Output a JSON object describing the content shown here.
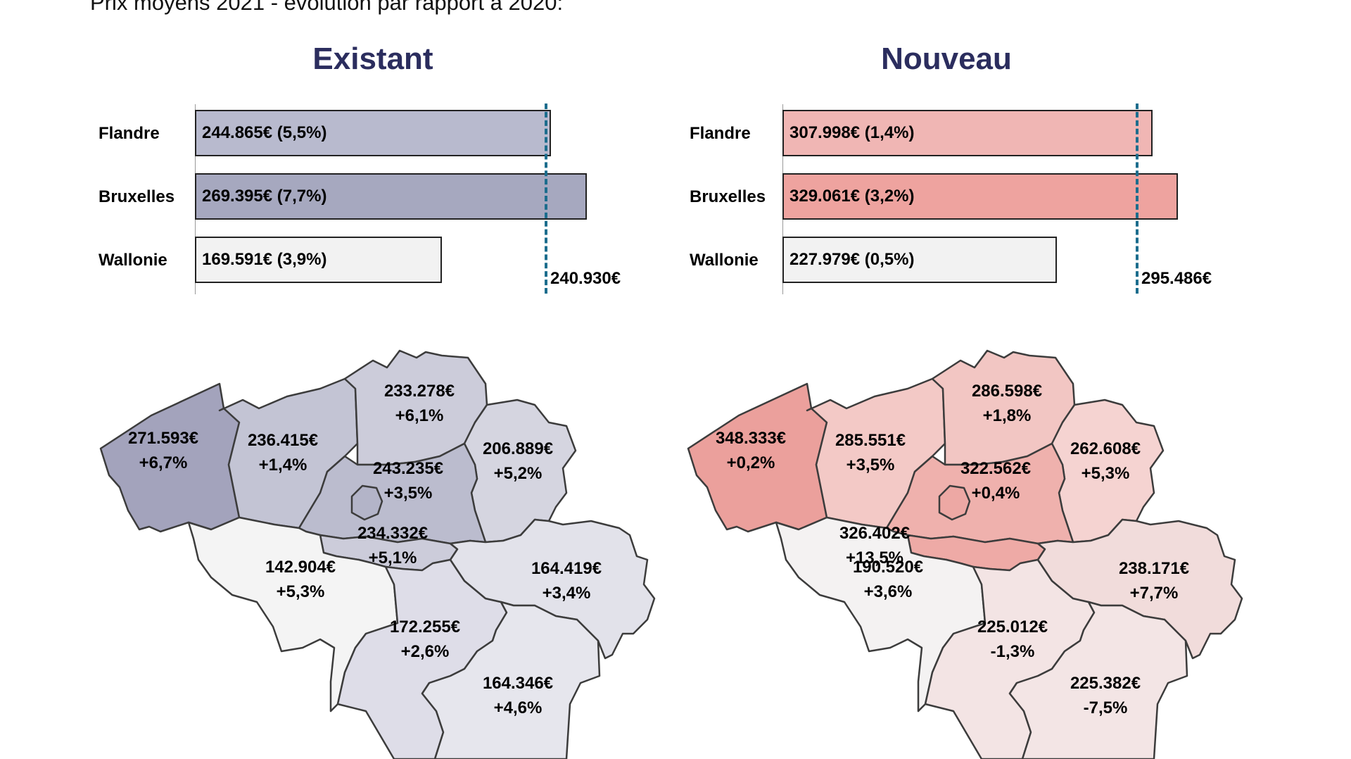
{
  "title": "Prix moyens 2021 - évolution par rapport à 2020:",
  "panels": {
    "existant": {
      "title": "Existant",
      "rows": [
        {
          "region": "Flandre",
          "label": "244.865€ (5,5%)",
          "value": 244865,
          "color": "#b8bace"
        },
        {
          "region": "Bruxelles",
          "label": "269.395€ (7,7%)",
          "value": 269395,
          "color": "#a6a8bf"
        },
        {
          "region": "Wallonie",
          "label": "169.591€ (3,9%)",
          "value": 169591,
          "color": "#f2f2f2"
        }
      ],
      "average": {
        "label": "240.930€",
        "value": 240930
      },
      "provinces": [
        {
          "id": "west-flanders",
          "price": "271.593€",
          "change": "+6,7%",
          "color": "#a3a3bc"
        },
        {
          "id": "east-flanders",
          "price": "236.415€",
          "change": "+1,4%",
          "color": "#c3c4d4"
        },
        {
          "id": "antwerp",
          "price": "233.278€",
          "change": "+6,1%",
          "color": "#ccccda"
        },
        {
          "id": "flemish-brabant",
          "price": "243.235€",
          "change": "+3,5%",
          "color": "#bbbcce"
        },
        {
          "id": "limburg",
          "price": "206.889€",
          "change": "+5,2%",
          "color": "#d5d5e0"
        },
        {
          "id": "brussels",
          "price": "",
          "change": "",
          "color": "#b3b4c8"
        },
        {
          "id": "walloon-brabant",
          "price": "234.332€",
          "change": "+5,1%",
          "color": "#ccccda"
        },
        {
          "id": "hainaut",
          "price": "142.904€",
          "change": "+5,3%",
          "color": "#f4f4f4"
        },
        {
          "id": "namur",
          "price": "172.255€",
          "change": "+2,6%",
          "color": "#dedde8"
        },
        {
          "id": "liege",
          "price": "164.419€",
          "change": "+3,4%",
          "color": "#e2e2ea"
        },
        {
          "id": "luxembourg",
          "price": "164.346€",
          "change": "+4,6%",
          "color": "#e6e6ed"
        }
      ]
    },
    "nouveau": {
      "title": "Nouveau",
      "rows": [
        {
          "region": "Flandre",
          "label": "307.998€ (1,4%)",
          "value": 307998,
          "color": "#f0b6b4"
        },
        {
          "region": "Bruxelles",
          "label": "329.061€ (3,2%)",
          "value": 329061,
          "color": "#eea39f"
        },
        {
          "region": "Wallonie",
          "label": "227.979€ (0,5%)",
          "value": 227979,
          "color": "#f2f2f2"
        }
      ],
      "average": {
        "label": "295.486€",
        "value": 295486
      },
      "provinces": [
        {
          "id": "west-flanders",
          "price": "348.333€",
          "change": "+0,2%",
          "color": "#eba09c"
        },
        {
          "id": "east-flanders",
          "price": "285.551€",
          "change": "+3,5%",
          "color": "#f3c9c6"
        },
        {
          "id": "antwerp",
          "price": "286.598€",
          "change": "+1,8%",
          "color": "#f2c6c3"
        },
        {
          "id": "flemish-brabant",
          "price": "322.562€",
          "change": "+0,4%",
          "color": "#efb1ad"
        },
        {
          "id": "limburg",
          "price": "262.608€",
          "change": "+5,3%",
          "color": "#f5d3d1"
        },
        {
          "id": "brussels",
          "price": "",
          "change": "",
          "color": "#eda8a4"
        },
        {
          "id": "walloon-brabant",
          "price": "326.402€",
          "change": "+13,5%",
          "color": "#eeaaa6"
        },
        {
          "id": "hainaut",
          "price": "190.520€",
          "change": "+3,6%",
          "color": "#f4f2f2"
        },
        {
          "id": "namur",
          "price": "225.012€",
          "change": "-1,3%",
          "color": "#f3e4e4"
        },
        {
          "id": "liege",
          "price": "238.171€",
          "change": "+7,7%",
          "color": "#f1dcdb"
        },
        {
          "id": "luxembourg",
          "price": "225.382€",
          "change": "-7,5%",
          "color": "#f3e5e5"
        }
      ]
    }
  }
}
